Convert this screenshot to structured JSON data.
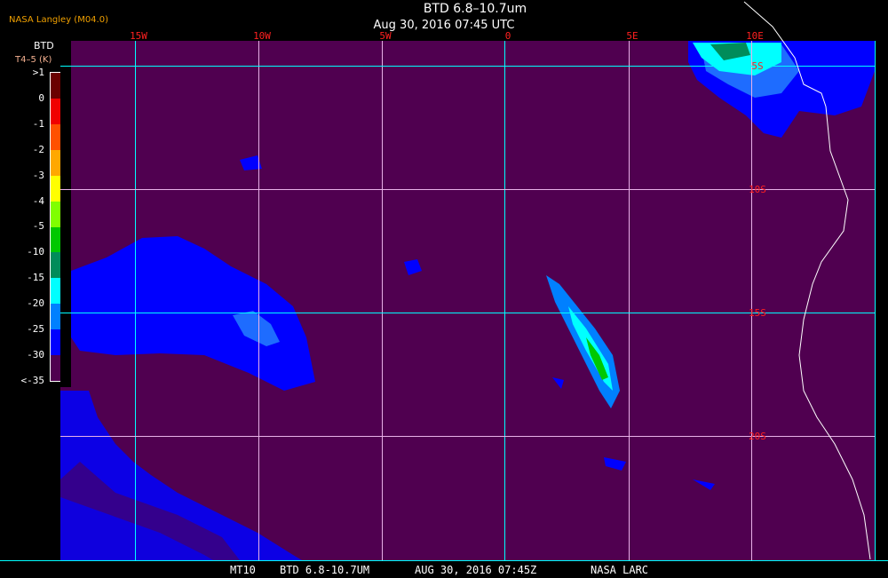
{
  "header": {
    "organization": "NASA Langley (M04.0)",
    "title": "BTD 6.8–10.7um",
    "datetime": "Aug 30, 2016 07:45 UTC"
  },
  "legend": {
    "title": "BTD",
    "unit": "T4–5 (K)",
    "labels": [
      ">1",
      "0",
      "-1",
      "-2",
      "-3",
      "-4",
      "-5",
      "-10",
      "-15",
      "-20",
      "-25",
      "-30",
      "<-35"
    ],
    "colors": [
      "#6a0000",
      "#f00000",
      "#ff5000",
      "#ffa800",
      "#ffff00",
      "#80ff00",
      "#00c800",
      "#008c5a",
      "#00ffff",
      "#0080ff",
      "#0000ff",
      "#500050"
    ]
  },
  "map": {
    "background_color": "#500050",
    "longitude_labels": [
      "15W",
      "10W",
      "5W",
      "0",
      "5E",
      "10E"
    ],
    "latitude_labels": [
      "5S",
      "10S",
      "15S",
      "20S"
    ],
    "grid_color_primary": "#00ffff",
    "grid_color_secondary": "#e8b0e8",
    "label_color": "#ff2020"
  },
  "footer": {
    "satellite": "MT10",
    "product": "BTD 6.8-10.7UM",
    "datetime": "AUG 30, 2016 07:45Z",
    "source": "NASA LARC"
  }
}
